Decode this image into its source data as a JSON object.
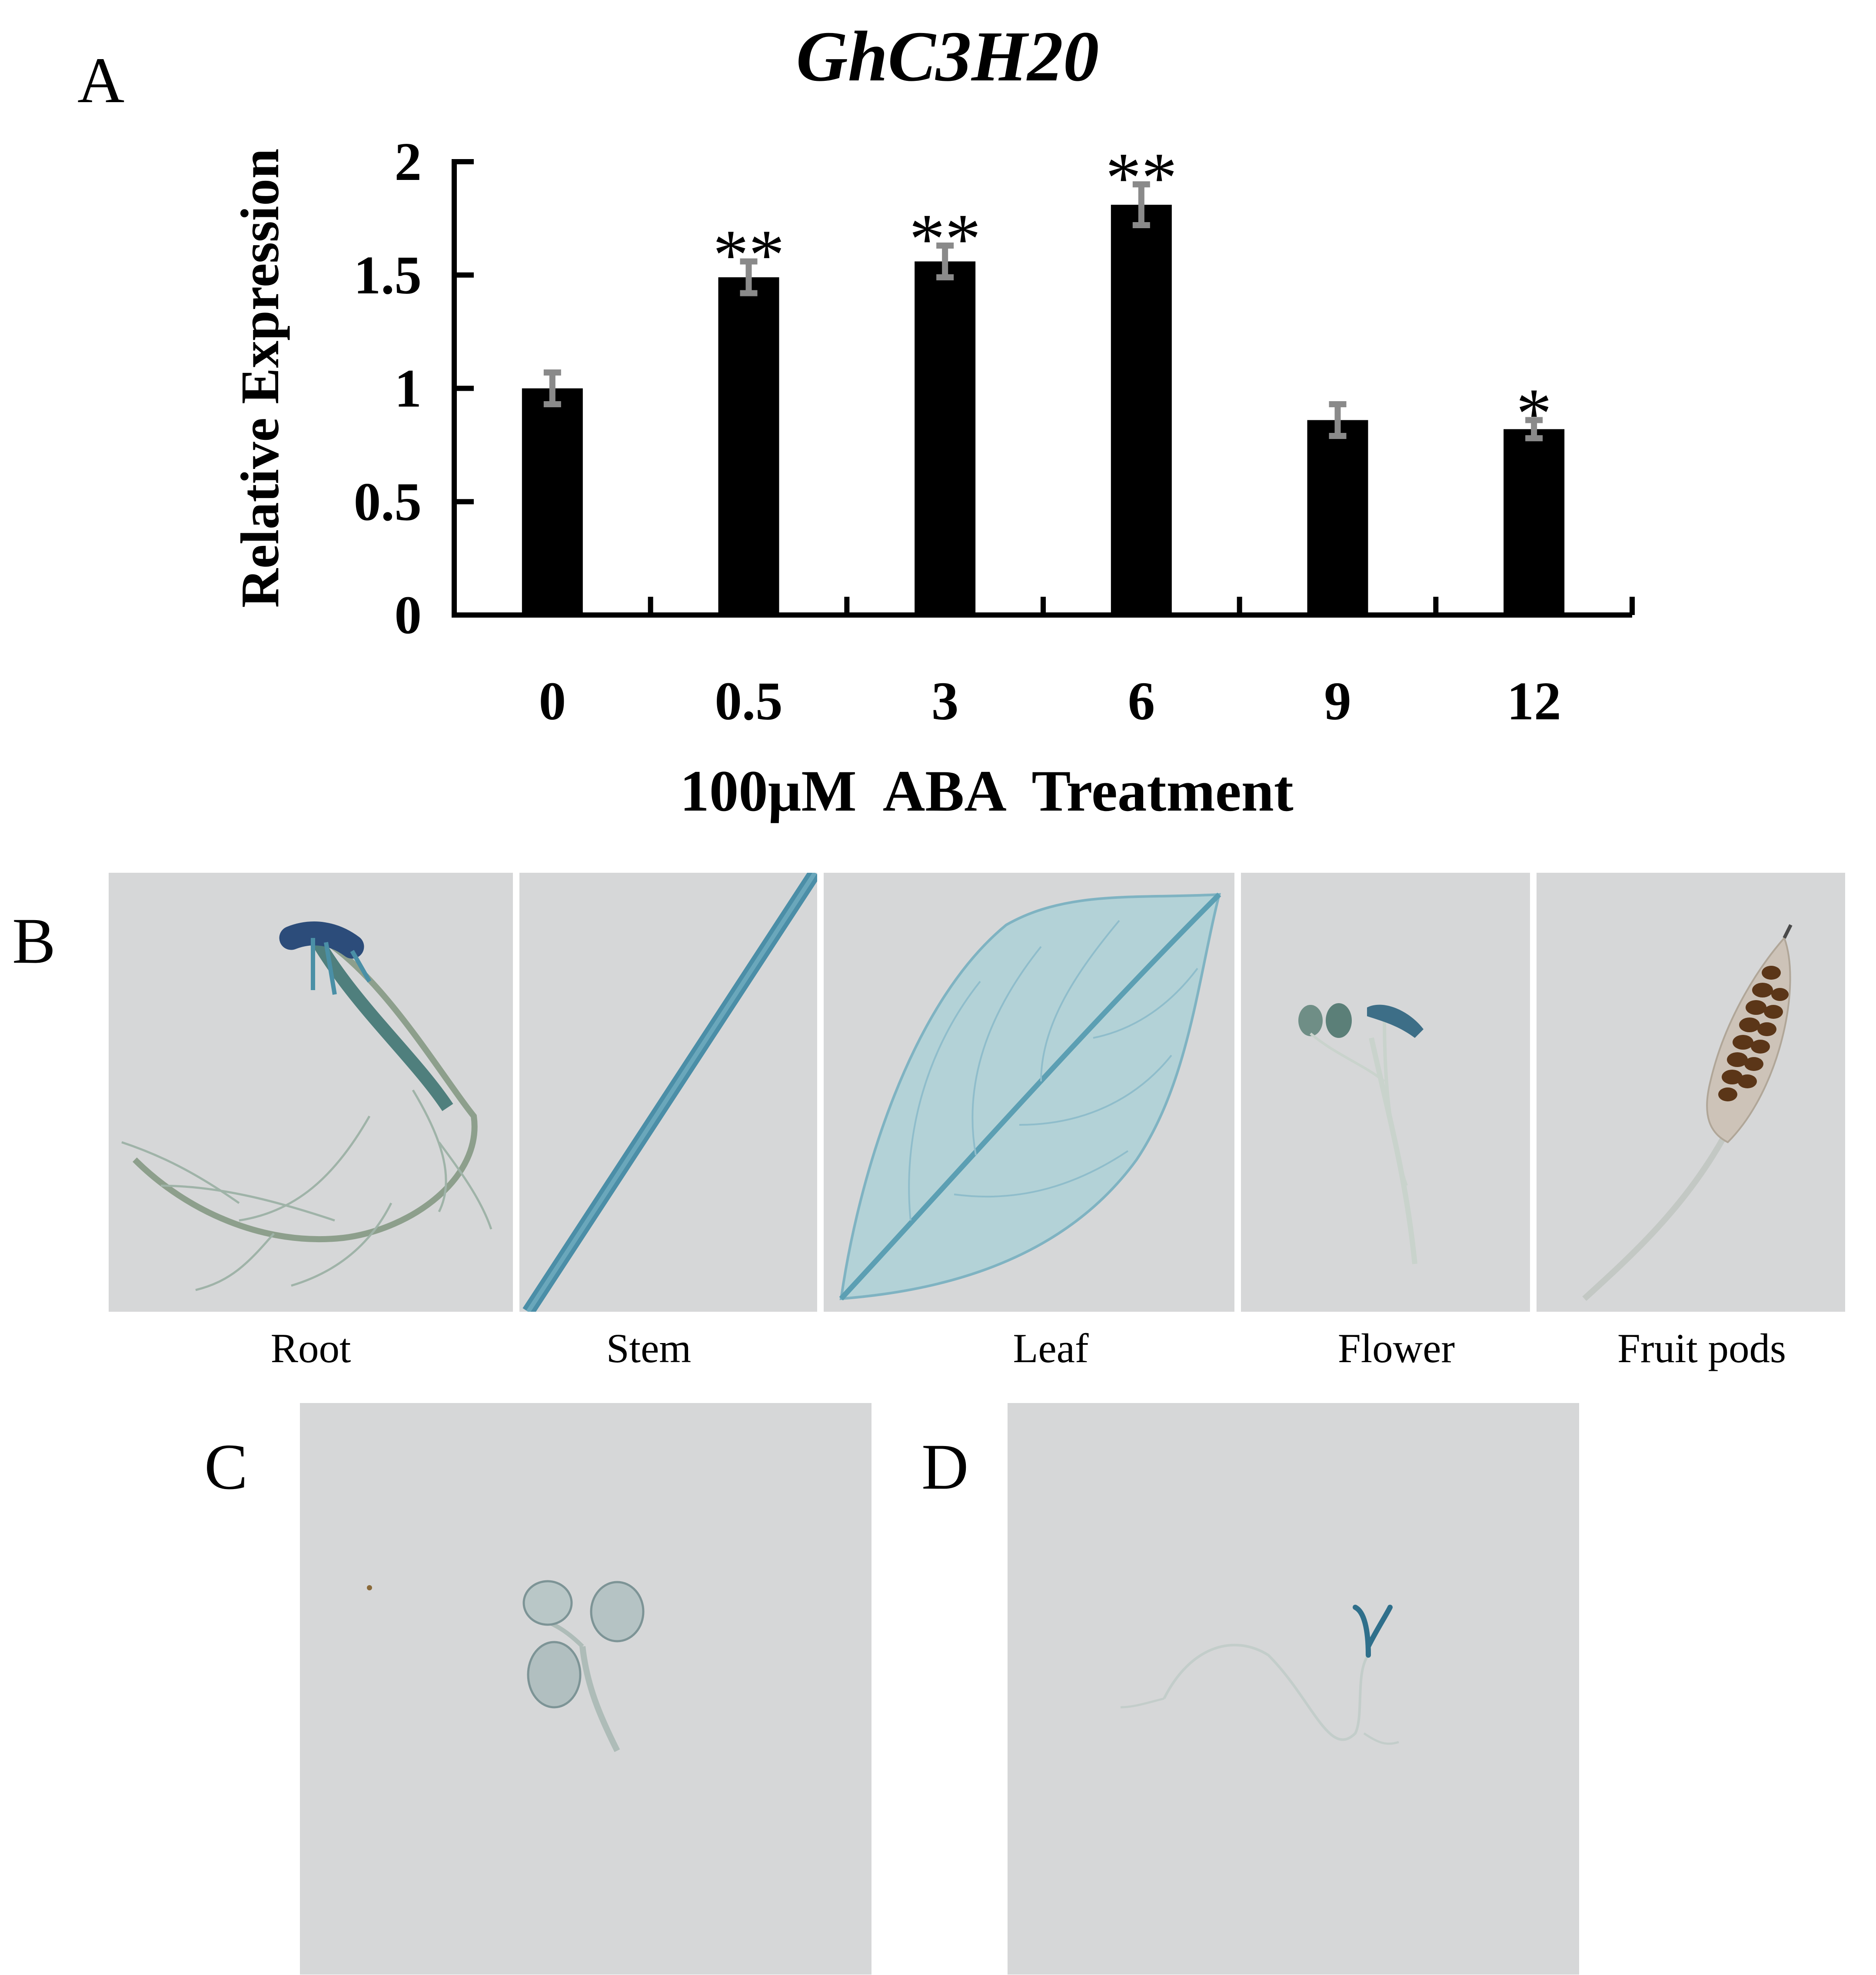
{
  "panels": {
    "a": "A",
    "b": "B",
    "c": "C",
    "d": "D"
  },
  "chart_data": {
    "type": "bar",
    "title": "GhC3H20",
    "xlabel": "100μM  ABA  Treatment",
    "ylabel": "Relative Expression",
    "ylim": [
      0,
      2
    ],
    "yticks": [
      "0",
      "0.5",
      "1",
      "1.5",
      "2"
    ],
    "categories": [
      "0",
      "0.5",
      "3",
      "6",
      "9",
      "12"
    ],
    "values": [
      1.0,
      1.49,
      1.56,
      1.81,
      0.86,
      0.82
    ],
    "errors": [
      0.07,
      0.07,
      0.07,
      0.09,
      0.07,
      0.04
    ],
    "significance": [
      "",
      "**",
      "**",
      "**",
      "",
      "*"
    ],
    "grid": false,
    "colors": {
      "bar": "#000000",
      "error_bar": "#8a8a8a"
    }
  },
  "tissues": {
    "root": "Root",
    "stem": "Stem",
    "leaf": "Leaf",
    "flower": "Flower",
    "fruit_pods": "Fruit pods"
  },
  "colors": {
    "background": "#ffffff",
    "photo_background": "#d6d7d8",
    "gus_stain": "#4a8fa6"
  }
}
